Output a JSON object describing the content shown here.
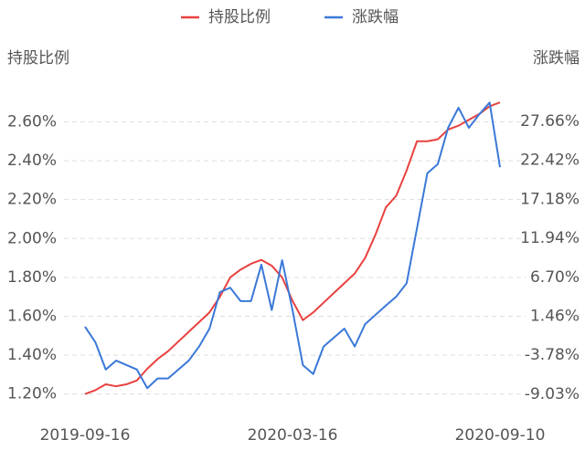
{
  "chart_data": {
    "type": "line",
    "categories": [
      "2019-09-16",
      null,
      null,
      null,
      null,
      null,
      null,
      null,
      null,
      null,
      null,
      null,
      null,
      null,
      null,
      null,
      null,
      null,
      null,
      null,
      "2020-03-16",
      null,
      null,
      null,
      null,
      null,
      null,
      null,
      null,
      null,
      null,
      null,
      null,
      null,
      null,
      null,
      null,
      null,
      null,
      null,
      "2020-09-10"
    ],
    "y_label": "持股比例",
    "y2_label": "涨跌幅",
    "ylim": [
      1.1,
      2.71
    ],
    "yticks": [
      {
        "value": 1.2,
        "label": "1.20%"
      },
      {
        "value": 1.4,
        "label": "1.40%"
      },
      {
        "value": 1.6,
        "label": "1.60%"
      },
      {
        "value": 1.8,
        "label": "1.80%"
      },
      {
        "value": 2.0,
        "label": "2.00%"
      },
      {
        "value": 2.2,
        "label": "2.20%"
      },
      {
        "value": 2.4,
        "label": "2.40%"
      },
      {
        "value": 2.6,
        "label": "2.60%"
      }
    ],
    "y2lim": [
      -11.61,
      30.48
    ],
    "y2ticks": [
      {
        "value": -9.03,
        "label": "-9.03%"
      },
      {
        "value": -3.78,
        "label": "-3.78%"
      },
      {
        "value": 1.46,
        "label": "1.46%"
      },
      {
        "value": 6.7,
        "label": "6.70%"
      },
      {
        "value": 11.94,
        "label": "11.94%"
      },
      {
        "value": 17.18,
        "label": "17.18%"
      },
      {
        "value": 22.42,
        "label": "22.42%"
      },
      {
        "value": 27.66,
        "label": "27.66%"
      }
    ],
    "grid": true,
    "legend": "top",
    "series": [
      {
        "name": "持股比例",
        "color": "#e8413f",
        "values": [
          1.2,
          1.22,
          1.25,
          1.24,
          1.25,
          1.27,
          1.33,
          1.38,
          1.42,
          1.47,
          1.52,
          1.57,
          1.62,
          1.7,
          1.8,
          1.84,
          1.87,
          1.89,
          1.86,
          1.8,
          1.68,
          1.58,
          1.62,
          1.67,
          1.72,
          1.77,
          1.82,
          1.9,
          2.02,
          2.16,
          2.22,
          2.35,
          2.5,
          2.5,
          2.51,
          2.56,
          2.58,
          2.61,
          2.64,
          2.68,
          2.7
        ]
      },
      {
        "name": "涨跌幅",
        "color": "#3a78d8",
        "axis": "y2",
        "values": [
          0.05,
          -2.03,
          -5.7,
          -4.5,
          -5.1,
          -5.7,
          -8.2,
          -6.9,
          -6.9,
          -5.7,
          -4.5,
          -2.6,
          -0.2,
          4.7,
          5.3,
          3.5,
          3.5,
          8.4,
          2.3,
          9.0,
          2.3,
          -5.1,
          -6.3,
          -2.6,
          -1.4,
          -0.2,
          -2.6,
          0.4,
          1.65,
          2.9,
          4.1,
          5.9,
          13.3,
          20.7,
          21.9,
          26.8,
          29.5,
          26.8,
          28.6,
          30.2,
          21.5
        ]
      }
    ]
  }
}
